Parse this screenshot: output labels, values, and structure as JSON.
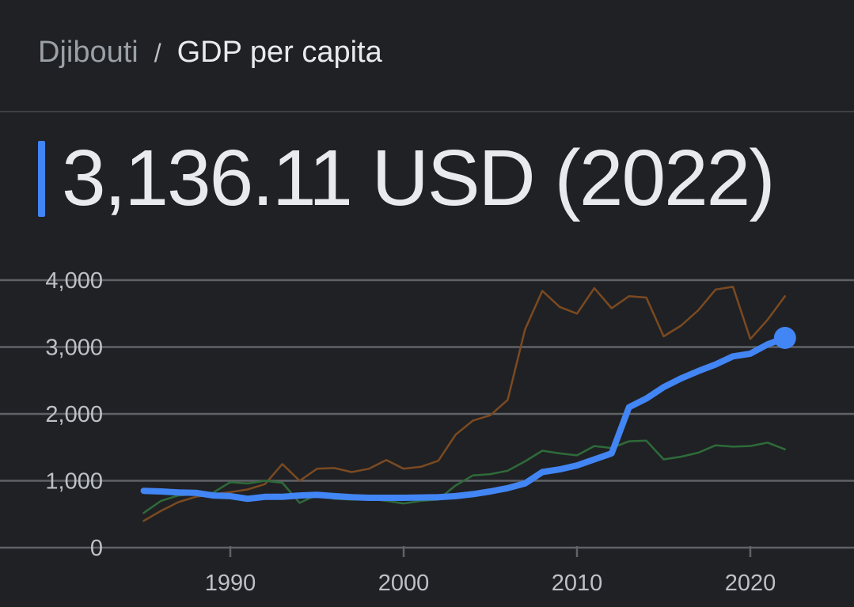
{
  "breadcrumb": {
    "country": "Djibouti",
    "separator": "/",
    "metric": "GDP per capita"
  },
  "headline": {
    "value_text": "3,136.11 USD (2022)"
  },
  "colors": {
    "background": "#202124",
    "primary": "#4285f4",
    "series_brown": "#7b4a21",
    "series_green": "#2e6b3a",
    "gridline": "#5f6368",
    "tick_text": "#bdc1c6"
  },
  "chart_data": {
    "type": "line",
    "title": "",
    "xlabel": "",
    "ylabel": "",
    "xlim": [
      1983,
      2026
    ],
    "ylim": [
      0,
      4000
    ],
    "y_ticks": [
      0,
      1000,
      2000,
      3000,
      4000
    ],
    "y_tick_labels": [
      "0",
      "1,000",
      "2,000",
      "3,000",
      "4,000"
    ],
    "x_ticks": [
      1990,
      2000,
      2010,
      2020
    ],
    "x_tick_labels": [
      "1990",
      "2000",
      "2010",
      "2020"
    ],
    "grid": true,
    "legend": "none",
    "series": [
      {
        "color": "#7b4a21",
        "x": [
          1985,
          1986,
          1987,
          1988,
          1989,
          1990,
          1991,
          1992,
          1993,
          1994,
          1995,
          1996,
          1997,
          1998,
          1999,
          2000,
          2001,
          2002,
          2003,
          2004,
          2005,
          2006,
          2007,
          2008,
          2009,
          2010,
          2011,
          2012,
          2013,
          2014,
          2015,
          2016,
          2017,
          2018,
          2019,
          2020,
          2021,
          2022
        ],
        "values": [
          400,
          550,
          680,
          760,
          800,
          830,
          870,
          950,
          1250,
          1000,
          1180,
          1190,
          1130,
          1180,
          1310,
          1180,
          1210,
          1300,
          1690,
          1900,
          1980,
          2210,
          3260,
          3840,
          3600,
          3500,
          3880,
          3580,
          3760,
          3740,
          3160,
          3320,
          3550,
          3860,
          3900,
          3120,
          3410,
          3760
        ]
      },
      {
        "color": "#2e6b3a",
        "x": [
          1985,
          1986,
          1987,
          1988,
          1989,
          1990,
          1991,
          1992,
          1993,
          1994,
          1995,
          1996,
          1997,
          1998,
          1999,
          2000,
          2001,
          2002,
          2003,
          2004,
          2005,
          2006,
          2007,
          2008,
          2009,
          2010,
          2011,
          2012,
          2013,
          2014,
          2015,
          2016,
          2017,
          2018,
          2019,
          2020,
          2021,
          2022
        ],
        "values": [
          520,
          700,
          780,
          800,
          820,
          980,
          960,
          1000,
          970,
          670,
          790,
          730,
          720,
          730,
          700,
          660,
          700,
          720,
          930,
          1080,
          1100,
          1150,
          1290,
          1450,
          1410,
          1380,
          1520,
          1490,
          1590,
          1600,
          1320,
          1360,
          1420,
          1530,
          1510,
          1520,
          1570,
          1470
        ]
      },
      {
        "color": "#4285f4",
        "x": [
          1985,
          1986,
          1987,
          1988,
          1989,
          1990,
          1991,
          1992,
          1993,
          1994,
          1995,
          1996,
          1997,
          1998,
          1999,
          2000,
          2001,
          2002,
          2003,
          2004,
          2005,
          2006,
          2007,
          2008,
          2009,
          2010,
          2011,
          2012,
          2013,
          2014,
          2015,
          2016,
          2017,
          2018,
          2019,
          2020,
          2021,
          2022
        ],
        "values": [
          850,
          840,
          825,
          820,
          780,
          770,
          730,
          760,
          760,
          780,
          790,
          770,
          755,
          745,
          745,
          745,
          750,
          755,
          770,
          800,
          840,
          890,
          960,
          1130,
          1170,
          1230,
          1320,
          1410,
          2100,
          2230,
          2400,
          2530,
          2640,
          2740,
          2860,
          2900,
          3040,
          3136.11
        ]
      }
    ],
    "highlight_point": {
      "x": 2022,
      "y": 3136.11
    }
  }
}
